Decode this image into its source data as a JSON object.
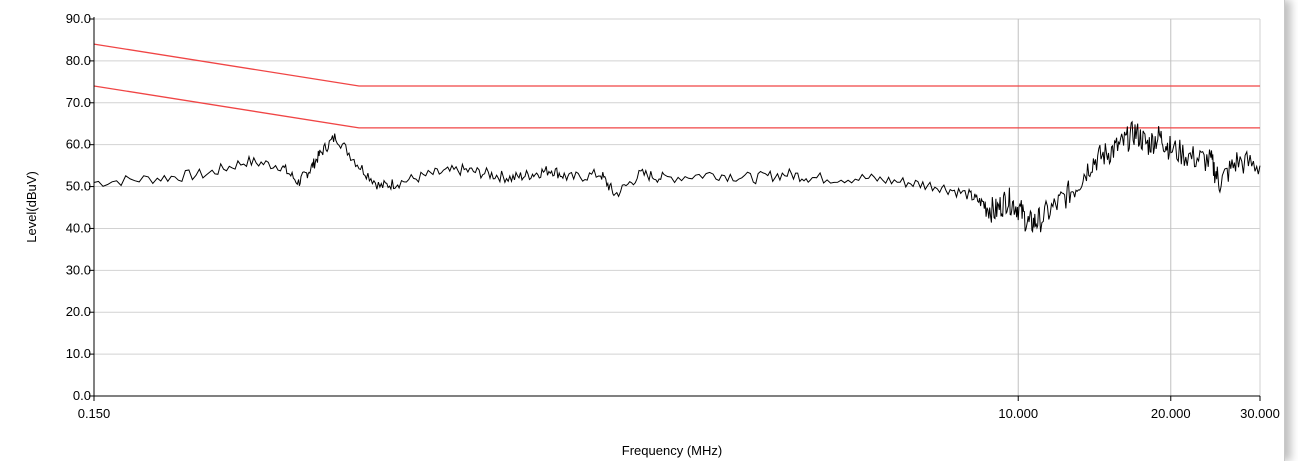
{
  "chart_data": {
    "type": "line",
    "title": "",
    "xlabel": "Frequency (MHz)",
    "ylabel": "Level(dBuV)",
    "x_scale": "log",
    "xlim": [
      0.15,
      30
    ],
    "ylim": [
      0,
      90
    ],
    "y_ticks": [
      "0.0",
      "10.0",
      "20.0",
      "30.0",
      "40.0",
      "50.0",
      "60.0",
      "70.0",
      "80.0",
      "90.0"
    ],
    "x_tick_labels": [
      {
        "value": 0.15,
        "label": "0.150"
      },
      {
        "value": 10,
        "label": "10.000"
      },
      {
        "value": 20,
        "label": "20.000"
      },
      {
        "value": 30,
        "label": "30.000"
      }
    ],
    "x_gridlines": [
      10,
      20
    ],
    "grid": true,
    "colors": {
      "limit": "#f04545",
      "trace": "#000000",
      "grid": "#d2d2d2"
    },
    "limit_lines": [
      {
        "x": [
          0.15,
          0.5,
          30
        ],
        "y": [
          84,
          74,
          74
        ]
      },
      {
        "x": [
          0.15,
          0.5,
          30
        ],
        "y": [
          74,
          64,
          64
        ]
      }
    ],
    "series": [
      {
        "x": [
          0.15,
          0.2,
          0.25,
          0.3,
          0.35,
          0.38,
          0.4,
          0.42,
          0.45,
          0.5,
          0.55,
          0.6,
          0.7,
          0.8,
          0.9,
          1.0,
          1.1,
          1.2,
          1.3,
          1.5,
          1.6,
          1.8,
          2.0,
          2.5,
          3.0,
          3.5,
          4.0,
          5.0,
          6.0,
          7.0,
          8.0,
          8.5,
          9.0,
          9.5,
          10.0,
          10.5,
          11.0,
          12.0,
          13.0,
          14.0,
          15.0,
          16.0,
          17.0,
          18.0,
          19.0,
          20.0,
          22.0,
          24.0,
          25.0,
          27.0,
          30.0
        ],
        "y": [
          51,
          52,
          53,
          56,
          55,
          51,
          54,
          58,
          62,
          55,
          50,
          51,
          53,
          54,
          53,
          52,
          53,
          54,
          52,
          53,
          48,
          53,
          52,
          53,
          52,
          53,
          52,
          52,
          51,
          50,
          48,
          46,
          44,
          47,
          45,
          41,
          42,
          46,
          50,
          56,
          58,
          60,
          63,
          60,
          62,
          59,
          57,
          56,
          51,
          56,
          55
        ]
      }
    ]
  }
}
